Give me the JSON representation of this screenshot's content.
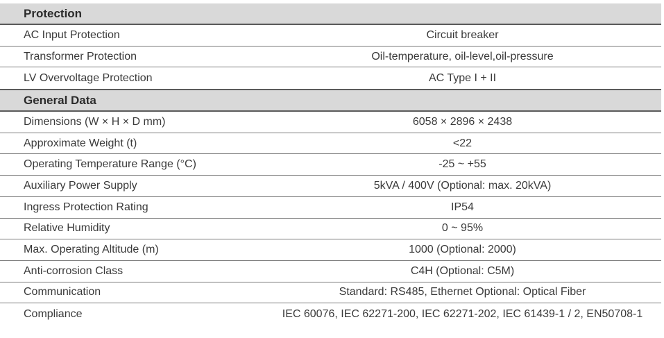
{
  "sections": [
    {
      "title": "Protection",
      "rows": [
        {
          "label": "AC Input Protection",
          "value": "Circuit breaker"
        },
        {
          "label": "Transformer Protection",
          "value": "Oil-temperature, oil-level,oil-pressure"
        },
        {
          "label": "LV Overvoltage Protection",
          "value": "AC Type I + II"
        }
      ]
    },
    {
      "title": "General Data",
      "rows": [
        {
          "label": "Dimensions (W × H × D mm)",
          "value": "6058 × 2896 × 2438"
        },
        {
          "label": "Approximate Weight (t)",
          "value": "<22"
        },
        {
          "label": "Operating Temperature Range (°C)",
          "value": "-25 ~ +55"
        },
        {
          "label": "Auxiliary Power Supply",
          "value": "5kVA / 400V (Optional: max. 20kVA)"
        },
        {
          "label": "Ingress Protection Rating",
          "value": "IP54"
        },
        {
          "label": "Relative Humidity",
          "value": "0 ~ 95%"
        },
        {
          "label": "Max. Operating Altitude (m)",
          "value": "1000 (Optional: 2000)"
        },
        {
          "label": "Anti-corrosion Class",
          "value": "C4H (Optional: C5M)"
        },
        {
          "label": "Communication",
          "value": "Standard: RS485, Ethernet Optional: Optical Fiber"
        },
        {
          "label": "Compliance",
          "value": "IEC 60076, IEC 62271-200, IEC 62271-202, IEC 61439-1 / 2, EN50708-1"
        }
      ]
    }
  ]
}
